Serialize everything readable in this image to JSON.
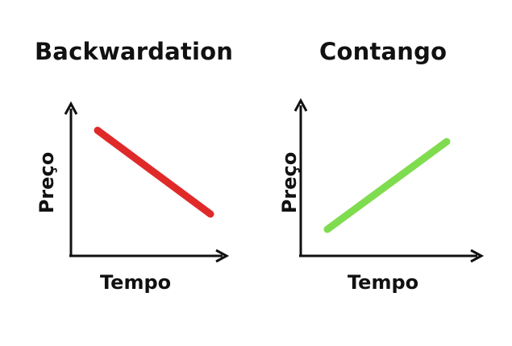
{
  "panels": [
    {
      "title": "Backwardation",
      "xlabel": "Tempo",
      "ylabel": "Preço",
      "trend": "down",
      "line_color": "#e02a2a"
    },
    {
      "title": "Contango",
      "xlabel": "Tempo",
      "ylabel": "Preço",
      "trend": "up",
      "line_color": "#7fdc4f"
    }
  ],
  "colors": {
    "axis": "#111111",
    "background": "#ffffff"
  }
}
